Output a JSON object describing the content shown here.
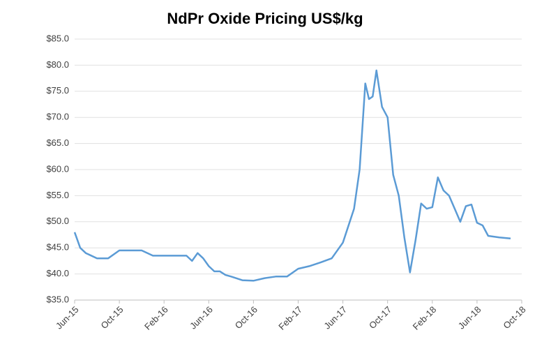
{
  "chart_data": {
    "type": "line",
    "title": "NdPr Oxide Pricing US$/kg",
    "x": [
      "2015-06",
      "2015-06",
      "2015-07",
      "2015-08",
      "2015-09",
      "2015-10",
      "2015-11",
      "2015-12",
      "2016-01",
      "2016-02",
      "2016-03",
      "2016-04",
      "2016-04",
      "2016-05",
      "2016-05",
      "2016-06",
      "2016-06",
      "2016-07",
      "2016-07",
      "2016-08",
      "2016-09",
      "2016-10",
      "2016-11",
      "2016-12",
      "2017-01",
      "2017-02",
      "2017-03",
      "2017-04",
      "2017-05",
      "2017-06",
      "2017-07",
      "2017-07",
      "2017-08",
      "2017-08",
      "2017-08",
      "2017-09",
      "2017-09",
      "2017-10",
      "2017-10",
      "2017-11",
      "2017-11",
      "2017-12",
      "2017-12",
      "2018-01",
      "2018-01",
      "2018-02",
      "2018-02",
      "2018-03",
      "2018-03",
      "2018-04",
      "2018-04",
      "2018-05",
      "2018-05",
      "2018-06",
      "2018-06",
      "2018-07",
      "2018-08",
      "2018-09"
    ],
    "series": [
      {
        "name": "NdPr Oxide",
        "color": "#5b9bd5",
        "values": [
          48,
          45,
          44,
          43,
          43,
          44.5,
          44.5,
          44.5,
          43.5,
          43.5,
          43.5,
          43.5,
          42.5,
          44,
          43,
          41.5,
          40.5,
          40.5,
          39.8,
          39.5,
          38.8,
          38.7,
          39.2,
          39.5,
          39.5,
          41,
          41.5,
          42.2,
          43,
          46,
          52.5,
          60,
          76.5,
          73.5,
          74,
          79,
          72,
          70,
          59,
          55,
          47,
          40.3,
          46.5,
          53.5,
          52.5,
          52.8,
          58.5,
          56,
          55,
          52.5,
          50,
          53,
          53.3,
          49.8,
          49.3,
          47.3,
          47,
          46.8
        ]
      }
    ],
    "xlim": [
      "2015-06",
      "2018-10"
    ],
    "xticks": [
      {
        "value": "2015-06",
        "label": "Jun-15"
      },
      {
        "value": "2015-10",
        "label": "Oct-15"
      },
      {
        "value": "2016-02",
        "label": "Feb-16"
      },
      {
        "value": "2016-06",
        "label": "Jun-16"
      },
      {
        "value": "2016-10",
        "label": "Oct-16"
      },
      {
        "value": "2017-02",
        "label": "Feb-17"
      },
      {
        "value": "2017-06",
        "label": "Jun-17"
      },
      {
        "value": "2017-10",
        "label": "Oct-17"
      },
      {
        "value": "2018-02",
        "label": "Feb-18"
      },
      {
        "value": "2018-06",
        "label": "Jun-18"
      },
      {
        "value": "2018-10",
        "label": "Oct-18"
      }
    ],
    "ylim": [
      35,
      85
    ],
    "yticks": [
      {
        "value": 35,
        "label": "$35.0"
      },
      {
        "value": 40,
        "label": "$40.0"
      },
      {
        "value": 45,
        "label": "$45.0"
      },
      {
        "value": 50,
        "label": "$50.0"
      },
      {
        "value": 55,
        "label": "$55.0"
      },
      {
        "value": 60,
        "label": "$60.0"
      },
      {
        "value": 65,
        "label": "$65.0"
      },
      {
        "value": 70,
        "label": "$70.0"
      },
      {
        "value": 75,
        "label": "$75.0"
      },
      {
        "value": 80,
        "label": "$80.0"
      },
      {
        "value": 85,
        "label": "$85.0"
      }
    ],
    "grid": true
  }
}
